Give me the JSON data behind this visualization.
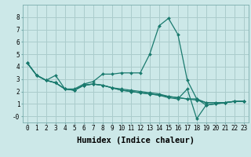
{
  "title": "",
  "xlabel": "Humidex (Indice chaleur)",
  "bg_color": "#cce8e8",
  "grid_color": "#aacccc",
  "line_color": "#1a7a6e",
  "xlim": [
    -0.5,
    23.5
  ],
  "ylim": [
    -0.5,
    9.0
  ],
  "x": [
    0,
    1,
    2,
    3,
    4,
    5,
    6,
    7,
    8,
    9,
    10,
    11,
    12,
    13,
    14,
    15,
    16,
    17,
    18,
    19,
    20,
    21,
    22,
    23
  ],
  "series": [
    [
      4.3,
      3.3,
      2.9,
      3.3,
      2.2,
      2.2,
      2.6,
      2.8,
      3.4,
      3.4,
      3.5,
      3.5,
      3.5,
      5.0,
      7.3,
      7.9,
      6.6,
      2.9,
      1.4,
      0.9,
      1.0,
      1.1,
      1.2,
      1.2
    ],
    [
      4.3,
      3.3,
      2.9,
      2.7,
      2.2,
      2.1,
      2.5,
      2.6,
      2.5,
      2.3,
      2.2,
      2.1,
      2.0,
      1.9,
      1.8,
      1.6,
      1.5,
      1.4,
      1.3,
      1.1,
      1.1,
      1.1,
      1.2,
      1.2
    ],
    [
      4.3,
      3.3,
      2.9,
      2.7,
      2.2,
      2.1,
      2.5,
      2.6,
      2.5,
      2.3,
      2.1,
      2.0,
      1.9,
      1.8,
      1.7,
      1.6,
      1.5,
      1.4,
      1.4,
      1.1,
      1.1,
      1.1,
      1.2,
      1.2
    ],
    [
      4.3,
      3.3,
      2.9,
      2.7,
      2.2,
      2.1,
      2.5,
      2.6,
      2.5,
      2.3,
      2.1,
      2.0,
      1.9,
      1.8,
      1.7,
      1.5,
      1.4,
      2.2,
      -0.2,
      0.9,
      1.0,
      1.1,
      1.2,
      1.2
    ]
  ],
  "xticks": [
    0,
    1,
    2,
    3,
    4,
    5,
    6,
    7,
    8,
    9,
    10,
    11,
    12,
    13,
    14,
    15,
    16,
    17,
    18,
    19,
    20,
    21,
    22,
    23
  ],
  "yticks": [
    0,
    1,
    2,
    3,
    4,
    5,
    6,
    7,
    8
  ],
  "ytick_labels": [
    "-0",
    "1",
    "2",
    "3",
    "4",
    "5",
    "6",
    "7",
    "8"
  ],
  "font_family": "monospace",
  "tick_fontsize": 5.5,
  "label_fontsize": 7.5,
  "marker_size": 2.0,
  "line_width": 0.9
}
